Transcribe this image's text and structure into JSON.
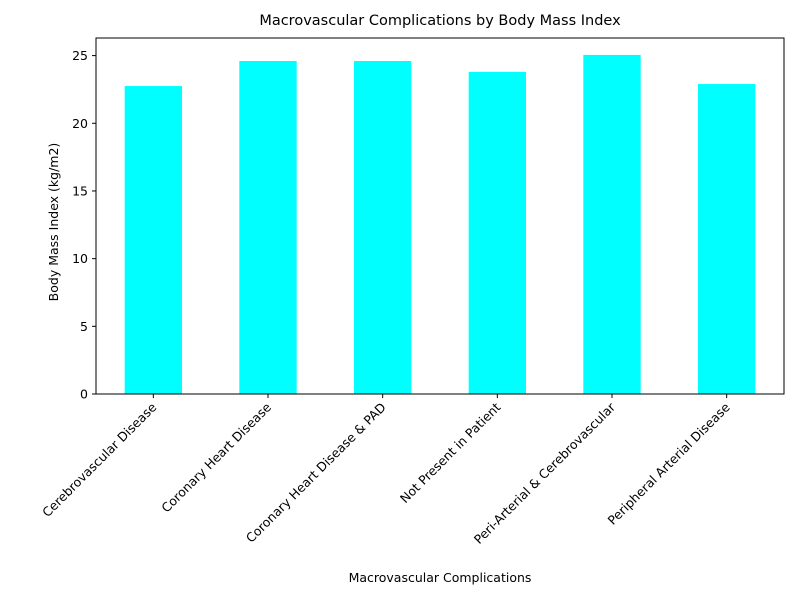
{
  "chart_data": {
    "type": "bar",
    "title": "Macrovascular Complications by Body Mass Index",
    "xlabel": "Macrovascular Complications",
    "ylabel": "Body Mass Index (kg/m2)",
    "categories": [
      "Cerebrovascular Disease",
      "Coronary Heart Disease",
      "Coronary Heart Disease & PAD",
      "Not Present in Patient",
      "Peri-Arterial & Cerebrovascular",
      "Peripheral Arterial Disease"
    ],
    "values": [
      22.75,
      24.6,
      24.6,
      23.8,
      25.05,
      22.9
    ],
    "ylim": [
      0,
      26.3
    ],
    "yticks": [
      0,
      5,
      10,
      15,
      20,
      25
    ],
    "bar_color": "#00ffff",
    "grid": false,
    "legend": false
  }
}
